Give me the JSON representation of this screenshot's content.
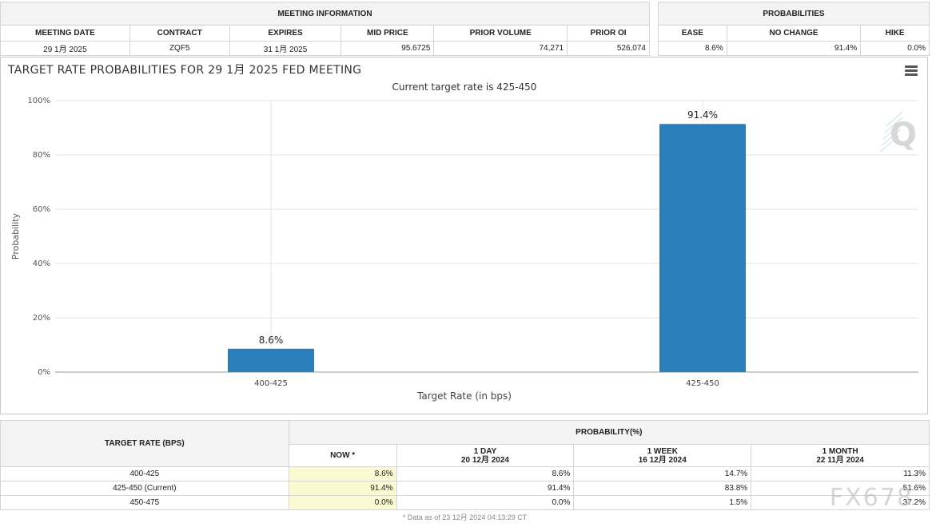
{
  "meeting_info": {
    "group_title": "MEETING INFORMATION",
    "headers": [
      "MEETING DATE",
      "CONTRACT",
      "EXPIRES",
      "MID PRICE",
      "PRIOR VOLUME",
      "PRIOR OI"
    ],
    "values": [
      "29 1月 2025",
      "ZQF5",
      "31 1月 2025",
      "95.6725",
      "74,271",
      "526,074"
    ]
  },
  "probabilities": {
    "group_title": "PROBABILITIES",
    "headers": [
      "EASE",
      "NO CHANGE",
      "HIKE"
    ],
    "values": [
      "8.6%",
      "91.4%",
      "0.0%"
    ]
  },
  "chart_data": {
    "type": "bar",
    "title": "TARGET RATE PROBABILITIES FOR 29 1月 2025 FED MEETING",
    "subtitle": "Current target rate is 425-450",
    "xlabel": "Target Rate (in bps)",
    "ylabel": "Probability",
    "categories": [
      "400-425",
      "425-450"
    ],
    "values": [
      8.6,
      91.4
    ],
    "data_labels": [
      "8.6%",
      "91.4%"
    ],
    "ylim": [
      0,
      100
    ],
    "yticks": [
      0,
      20,
      40,
      60,
      80,
      100
    ],
    "ytick_labels": [
      "0%",
      "20%",
      "40%",
      "60%",
      "80%",
      "100%"
    ],
    "bar_color": "#2a7fba",
    "grid": true,
    "legend": "none"
  },
  "history": {
    "target_rate_header": "TARGET RATE (BPS)",
    "group_title": "PROBABILITY(%)",
    "columns": [
      {
        "title": "NOW *",
        "date": ""
      },
      {
        "title": "1 DAY",
        "date": "20 12月 2024"
      },
      {
        "title": "1 WEEK",
        "date": "16 12月 2024"
      },
      {
        "title": "1 MONTH",
        "date": "22 11月 2024"
      }
    ],
    "rows": [
      {
        "rate": "400-425",
        "values": [
          "8.6%",
          "8.6%",
          "14.7%",
          "11.3%"
        ]
      },
      {
        "rate": "425-450 (Current)",
        "values": [
          "91.4%",
          "91.4%",
          "83.8%",
          "51.6%"
        ]
      },
      {
        "rate": "450-475",
        "values": [
          "0.0%",
          "0.0%",
          "1.5%",
          "37.2%"
        ]
      }
    ],
    "footnote": "* Data as of 23 12月 2024 04:13:29 CT"
  },
  "watermark": "FX678",
  "icons": [
    "menu-icon",
    "quikstrike-logo-icon"
  ]
}
